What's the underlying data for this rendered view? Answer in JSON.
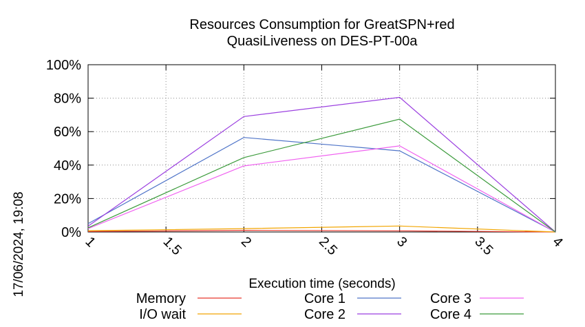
{
  "side_stamp": "17/06/2024, 19:08",
  "chart_data": {
    "type": "line",
    "title": "Resources Consumption for GreatSPN+red",
    "subtitle": "QuasiLiveness on DES-PT-00a",
    "xlabel": "Execution time (seconds)",
    "ylabel": "",
    "xlim": [
      1,
      4
    ],
    "ylim": [
      0,
      100
    ],
    "x_ticks": [
      "1",
      "1.5",
      "2",
      "2.5",
      "3",
      "3.5",
      "4"
    ],
    "y_ticks": [
      "0%",
      "20%",
      "40%",
      "60%",
      "80%",
      "100%"
    ],
    "grid": true,
    "legend_placement": "bottom",
    "x": [
      1,
      2,
      3,
      4
    ],
    "series": [
      {
        "name": "Memory",
        "color": "#e8362c",
        "values": [
          0.3,
          1.0,
          0.7,
          0
        ]
      },
      {
        "name": "I/O wait",
        "color": "#f2a500",
        "values": [
          0.8,
          2.0,
          3.6,
          0
        ]
      },
      {
        "name": "Core 1",
        "color": "#4f74c8",
        "values": [
          5.0,
          56.5,
          48.5,
          0
        ]
      },
      {
        "name": "Core 2",
        "color": "#9b3fe0",
        "values": [
          3.5,
          69.0,
          80.5,
          0
        ]
      },
      {
        "name": "Core 3",
        "color": "#f060f0",
        "values": [
          2.0,
          39.5,
          51.5,
          0
        ]
      },
      {
        "name": "Core 4",
        "color": "#3a9a3a",
        "values": [
          2.5,
          44.5,
          67.5,
          0
        ]
      }
    ]
  }
}
